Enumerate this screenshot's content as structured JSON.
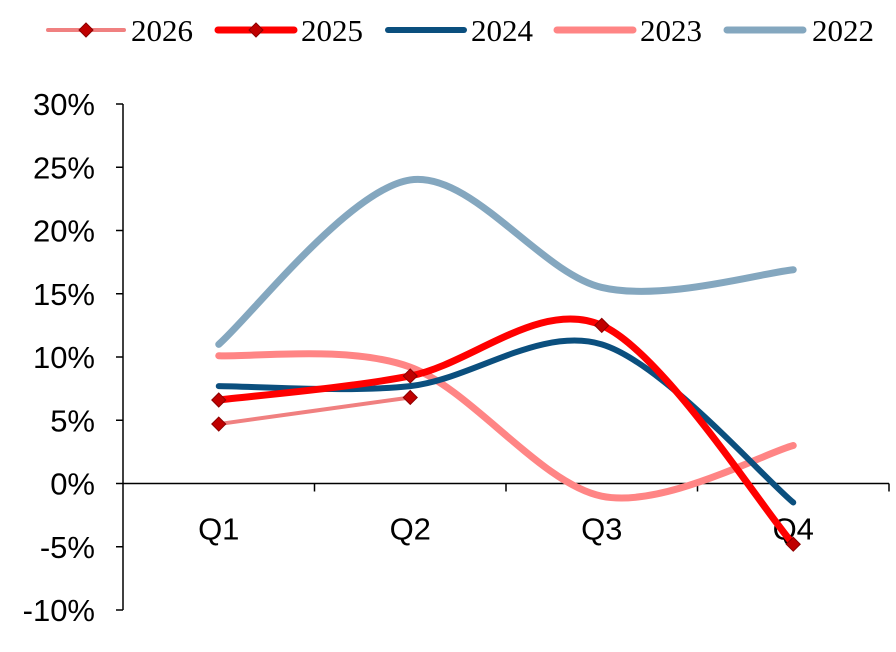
{
  "chart_data": {
    "type": "line",
    "categories": [
      "Q1",
      "Q2",
      "Q3",
      "Q4"
    ],
    "ylim": [
      -0.1,
      0.3
    ],
    "ytick_values": [
      -0.1,
      -0.05,
      0.0,
      0.05,
      0.1,
      0.15,
      0.2,
      0.25,
      0.3
    ],
    "ytick_labels": [
      "-10%",
      "-5%",
      "0%",
      "5%",
      "10%",
      "15%",
      "20%",
      "25%",
      "30%"
    ],
    "legend_position": "top",
    "grid": false,
    "series": [
      {
        "name": "2026",
        "values": [
          0.047,
          0.068,
          null,
          null
        ],
        "color": "#F08080",
        "marker": "diamond",
        "marker_color": "#C00000"
      },
      {
        "name": "2025",
        "values": [
          0.066,
          0.085,
          0.125,
          -0.048
        ],
        "color": "#FF0000",
        "marker": "diamond",
        "marker_color": "#C00000"
      },
      {
        "name": "2024",
        "values": [
          0.077,
          0.077,
          0.11,
          -0.015
        ],
        "color": "#0B4F7E",
        "marker": "none"
      },
      {
        "name": "2023",
        "values": [
          0.101,
          0.092,
          -0.01,
          0.03
        ],
        "color": "#FF8585",
        "marker": "none"
      },
      {
        "name": "2022",
        "values": [
          0.11,
          0.24,
          0.155,
          0.169
        ],
        "color": "#84A7BF",
        "marker": "none"
      }
    ]
  }
}
